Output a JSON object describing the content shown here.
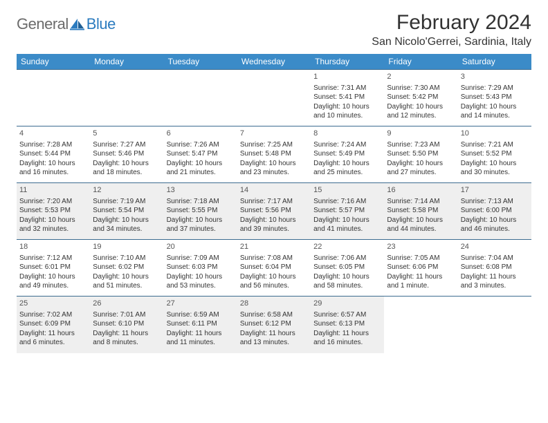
{
  "logo": {
    "general": "General",
    "blue": "Blue"
  },
  "title": "February 2024",
  "location": "San Nicolo'Gerrei, Sardinia, Italy",
  "header_bg": "#3b8bc8",
  "dayheaders": [
    "Sunday",
    "Monday",
    "Tuesday",
    "Wednesday",
    "Thursday",
    "Friday",
    "Saturday"
  ],
  "weeks": [
    [
      null,
      null,
      null,
      null,
      {
        "n": "1",
        "sr": "Sunrise: 7:31 AM",
        "ss": "Sunset: 5:41 PM",
        "dl": "Daylight: 10 hours and 10 minutes."
      },
      {
        "n": "2",
        "sr": "Sunrise: 7:30 AM",
        "ss": "Sunset: 5:42 PM",
        "dl": "Daylight: 10 hours and 12 minutes."
      },
      {
        "n": "3",
        "sr": "Sunrise: 7:29 AM",
        "ss": "Sunset: 5:43 PM",
        "dl": "Daylight: 10 hours and 14 minutes."
      }
    ],
    [
      {
        "n": "4",
        "sr": "Sunrise: 7:28 AM",
        "ss": "Sunset: 5:44 PM",
        "dl": "Daylight: 10 hours and 16 minutes."
      },
      {
        "n": "5",
        "sr": "Sunrise: 7:27 AM",
        "ss": "Sunset: 5:46 PM",
        "dl": "Daylight: 10 hours and 18 minutes."
      },
      {
        "n": "6",
        "sr": "Sunrise: 7:26 AM",
        "ss": "Sunset: 5:47 PM",
        "dl": "Daylight: 10 hours and 21 minutes."
      },
      {
        "n": "7",
        "sr": "Sunrise: 7:25 AM",
        "ss": "Sunset: 5:48 PM",
        "dl": "Daylight: 10 hours and 23 minutes."
      },
      {
        "n": "8",
        "sr": "Sunrise: 7:24 AM",
        "ss": "Sunset: 5:49 PM",
        "dl": "Daylight: 10 hours and 25 minutes."
      },
      {
        "n": "9",
        "sr": "Sunrise: 7:23 AM",
        "ss": "Sunset: 5:50 PM",
        "dl": "Daylight: 10 hours and 27 minutes."
      },
      {
        "n": "10",
        "sr": "Sunrise: 7:21 AM",
        "ss": "Sunset: 5:52 PM",
        "dl": "Daylight: 10 hours and 30 minutes."
      }
    ],
    [
      {
        "n": "11",
        "sr": "Sunrise: 7:20 AM",
        "ss": "Sunset: 5:53 PM",
        "dl": "Daylight: 10 hours and 32 minutes.",
        "sh": true
      },
      {
        "n": "12",
        "sr": "Sunrise: 7:19 AM",
        "ss": "Sunset: 5:54 PM",
        "dl": "Daylight: 10 hours and 34 minutes.",
        "sh": true
      },
      {
        "n": "13",
        "sr": "Sunrise: 7:18 AM",
        "ss": "Sunset: 5:55 PM",
        "dl": "Daylight: 10 hours and 37 minutes.",
        "sh": true
      },
      {
        "n": "14",
        "sr": "Sunrise: 7:17 AM",
        "ss": "Sunset: 5:56 PM",
        "dl": "Daylight: 10 hours and 39 minutes.",
        "sh": true
      },
      {
        "n": "15",
        "sr": "Sunrise: 7:16 AM",
        "ss": "Sunset: 5:57 PM",
        "dl": "Daylight: 10 hours and 41 minutes.",
        "sh": true
      },
      {
        "n": "16",
        "sr": "Sunrise: 7:14 AM",
        "ss": "Sunset: 5:58 PM",
        "dl": "Daylight: 10 hours and 44 minutes.",
        "sh": true
      },
      {
        "n": "17",
        "sr": "Sunrise: 7:13 AM",
        "ss": "Sunset: 6:00 PM",
        "dl": "Daylight: 10 hours and 46 minutes.",
        "sh": true
      }
    ],
    [
      {
        "n": "18",
        "sr": "Sunrise: 7:12 AM",
        "ss": "Sunset: 6:01 PM",
        "dl": "Daylight: 10 hours and 49 minutes."
      },
      {
        "n": "19",
        "sr": "Sunrise: 7:10 AM",
        "ss": "Sunset: 6:02 PM",
        "dl": "Daylight: 10 hours and 51 minutes."
      },
      {
        "n": "20",
        "sr": "Sunrise: 7:09 AM",
        "ss": "Sunset: 6:03 PM",
        "dl": "Daylight: 10 hours and 53 minutes."
      },
      {
        "n": "21",
        "sr": "Sunrise: 7:08 AM",
        "ss": "Sunset: 6:04 PM",
        "dl": "Daylight: 10 hours and 56 minutes."
      },
      {
        "n": "22",
        "sr": "Sunrise: 7:06 AM",
        "ss": "Sunset: 6:05 PM",
        "dl": "Daylight: 10 hours and 58 minutes."
      },
      {
        "n": "23",
        "sr": "Sunrise: 7:05 AM",
        "ss": "Sunset: 6:06 PM",
        "dl": "Daylight: 11 hours and 1 minute."
      },
      {
        "n": "24",
        "sr": "Sunrise: 7:04 AM",
        "ss": "Sunset: 6:08 PM",
        "dl": "Daylight: 11 hours and 3 minutes."
      }
    ],
    [
      {
        "n": "25",
        "sr": "Sunrise: 7:02 AM",
        "ss": "Sunset: 6:09 PM",
        "dl": "Daylight: 11 hours and 6 minutes.",
        "sh": true
      },
      {
        "n": "26",
        "sr": "Sunrise: 7:01 AM",
        "ss": "Sunset: 6:10 PM",
        "dl": "Daylight: 11 hours and 8 minutes.",
        "sh": true
      },
      {
        "n": "27",
        "sr": "Sunrise: 6:59 AM",
        "ss": "Sunset: 6:11 PM",
        "dl": "Daylight: 11 hours and 11 minutes.",
        "sh": true
      },
      {
        "n": "28",
        "sr": "Sunrise: 6:58 AM",
        "ss": "Sunset: 6:12 PM",
        "dl": "Daylight: 11 hours and 13 minutes.",
        "sh": true
      },
      {
        "n": "29",
        "sr": "Sunrise: 6:57 AM",
        "ss": "Sunset: 6:13 PM",
        "dl": "Daylight: 11 hours and 16 minutes.",
        "sh": true
      },
      null,
      null
    ]
  ]
}
